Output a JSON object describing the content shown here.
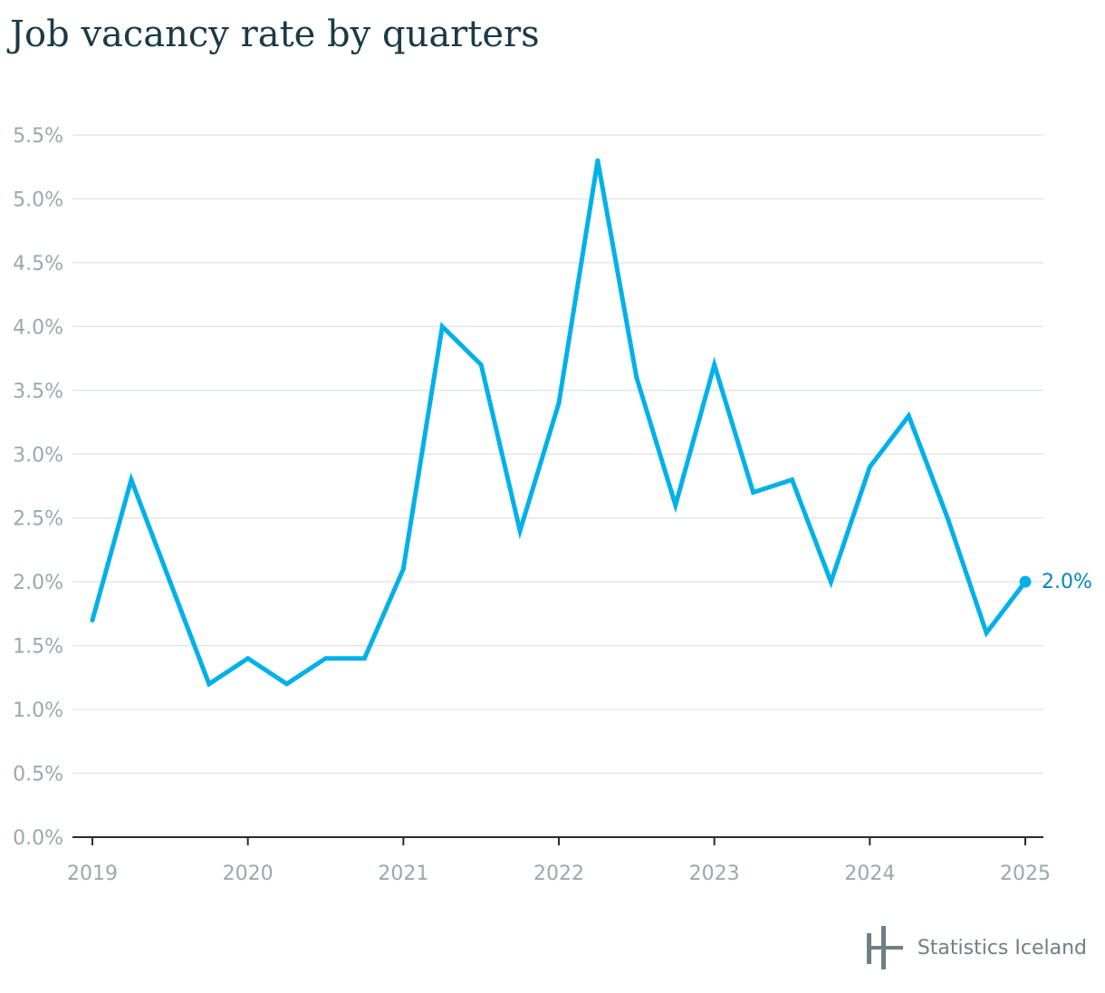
{
  "header": {
    "title": "Job vacancy rate by quarters"
  },
  "colors": {
    "line": "#00b1e9",
    "end_label": "#0087b8",
    "axis_text": "#9aa8ad",
    "grid": "#e3e6e7",
    "title": "#1b3a45",
    "logo": "#6e7f86"
  },
  "chart_data": {
    "type": "line",
    "title": "Job vacancy rate by quarters",
    "xlabel": "",
    "ylabel": "",
    "x_tick_labels": [
      "2019",
      "2020",
      "2021",
      "2022",
      "2023",
      "2024",
      "2025"
    ],
    "y_tick_labels": [
      "0.0%",
      "0.5%",
      "1.0%",
      "1.5%",
      "2.0%",
      "2.5%",
      "3.0%",
      "3.5%",
      "4.0%",
      "4.5%",
      "5.0%",
      "5.5%"
    ],
    "ylim": [
      0,
      5.5
    ],
    "y_unit": "%",
    "grid": true,
    "legend": "none",
    "series": [
      {
        "x": [
          "2019Q1",
          "2019Q2",
          "2019Q3",
          "2019Q4",
          "2020Q1",
          "2020Q2",
          "2020Q3",
          "2020Q4",
          "2021Q1",
          "2021Q2",
          "2021Q3",
          "2021Q4",
          "2022Q1",
          "2022Q2",
          "2022Q3",
          "2022Q4",
          "2023Q1",
          "2023Q2",
          "2023Q3",
          "2023Q4",
          "2024Q1",
          "2024Q2",
          "2024Q3",
          "2024Q4",
          "2025Q1"
        ],
        "values": [
          1.7,
          2.8,
          2.0,
          1.2,
          1.4,
          1.2,
          1.4,
          1.4,
          2.1,
          4.0,
          3.7,
          2.4,
          3.4,
          5.3,
          3.6,
          2.6,
          3.7,
          2.7,
          2.8,
          2.0,
          2.9,
          3.3,
          2.5,
          1.6,
          2.0
        ]
      }
    ],
    "end_label": "2.0%"
  },
  "footer": {
    "logo_text": "Statistics Iceland",
    "logo_icon": "statistics-iceland-logo-icon"
  }
}
